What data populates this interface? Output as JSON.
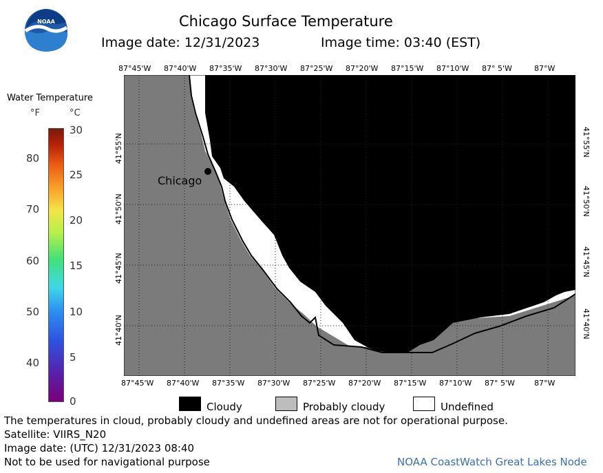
{
  "header": {
    "logo_text": "NOAA",
    "title": "Chicago Surface Temperature",
    "image_date": "Image date: 12/31/2023",
    "image_time": "Image time: 03:40 (EST)"
  },
  "colorbar": {
    "title": "Water Temperature",
    "unit_f": "°F",
    "unit_c": "°C",
    "f_ticks": [
      "80",
      "70",
      "60",
      "50",
      "40"
    ],
    "c_ticks": [
      "30",
      "25",
      "20",
      "15",
      "10",
      "5",
      "0"
    ]
  },
  "map": {
    "lon_labels": [
      "87°45'W",
      "87°40'W",
      "87°35'W",
      "87°30'W",
      "87°25'W",
      "87°20'W",
      "87°15'W",
      "87°10'W",
      "87° 5'W",
      "87°W"
    ],
    "lat_labels": [
      "41°55'N",
      "41°50'N",
      "41°45'N",
      "41°40'N"
    ],
    "city_label": "Chicago",
    "colors": {
      "land": "#7b7b7b",
      "cloudy": "#000000",
      "probably_cloudy": "#bdbdbd",
      "undefined": "#ffffff"
    }
  },
  "legend": {
    "cloudy": "Cloudy",
    "probably_cloudy": "Probably cloudy",
    "undefined": "Undefined"
  },
  "footer": {
    "disclaimer": "The temperatures in cloud, probably cloudy and undefined areas are not for operational purpose.",
    "satellite": "Satellite: VIIRS_N20",
    "utc_date": "Image date: (UTC) 12/31/2023  08:40",
    "nav_warning": "Not to be used for navigational purpose",
    "credit": "NOAA CoastWatch Great Lakes Node"
  }
}
